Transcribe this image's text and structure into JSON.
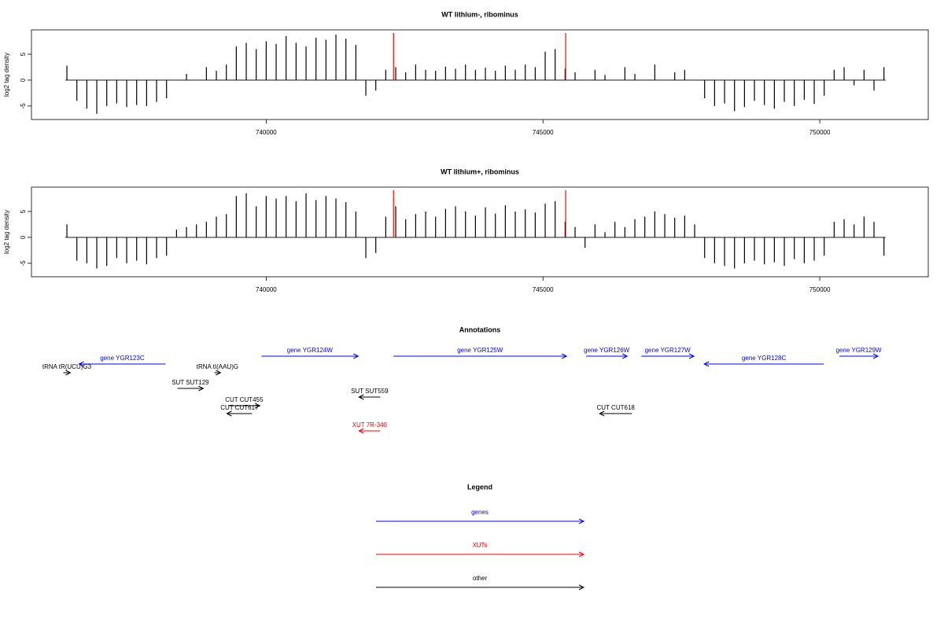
{
  "chart_data": [
    {
      "type": "bar",
      "title": "WT lithium-, ribominus",
      "ylabel": "log2 tag density",
      "color": "#000000",
      "x": [
        736400,
        736580,
        736760,
        736940,
        737120,
        737300,
        737480,
        737660,
        737840,
        738020,
        738200,
        738380,
        738560,
        738740,
        738920,
        739100,
        739280,
        739460,
        739640,
        739820,
        740000,
        740180,
        740360,
        740540,
        740720,
        740900,
        741080,
        741260,
        741440,
        741620,
        741800,
        741980,
        742160,
        742340,
        742520,
        742700,
        742880,
        743060,
        743240,
        743420,
        743600,
        743780,
        743960,
        744140,
        744320,
        744500,
        744680,
        744860,
        745040,
        745220,
        745400,
        745580,
        745760,
        745940,
        746120,
        746300,
        746480,
        746660,
        746840,
        747020,
        747200,
        747380,
        747560,
        747740,
        747920,
        748100,
        748280,
        748460,
        748640,
        748820,
        749000,
        749180,
        749360,
        749540,
        749720,
        749900,
        750080,
        750260,
        750440,
        750620,
        750800,
        750980,
        751160
      ],
      "values": [
        2.8,
        -4,
        -5.5,
        -6.5,
        -5,
        -4.5,
        -5.2,
        -4.8,
        -5,
        -4.2,
        -3.5,
        0,
        1.2,
        0,
        2.5,
        1.8,
        3,
        6.5,
        7.2,
        6,
        7.5,
        7,
        8.5,
        7.2,
        6.5,
        8.2,
        7.8,
        8.8,
        8,
        6.8,
        -3,
        -2,
        2,
        2.5,
        1.5,
        3,
        2,
        1.8,
        2.6,
        2.2,
        3,
        2,
        2.4,
        1.8,
        2.8,
        2,
        3,
        2.5,
        5.5,
        6,
        2.2,
        1.5,
        0,
        2,
        1,
        0,
        2.5,
        1.2,
        0,
        3,
        0,
        1.5,
        2,
        0,
        -3.5,
        -5,
        -4.5,
        -6,
        -5.2,
        -4,
        -4.8,
        -5.5,
        -4.2,
        -5,
        -3.8,
        -4.6,
        -3,
        2,
        2.5,
        -1,
        2,
        -2,
        2.5
      ],
      "vlines": [
        742300,
        745410
      ],
      "vline_color": "#ff0000",
      "xlim": [
        735760,
        751960
      ],
      "xticks": [
        740000,
        745000,
        750000
      ],
      "ylim": [
        -7.6,
        9.7
      ],
      "yticks": [
        -5,
        0,
        5
      ]
    },
    {
      "type": "bar",
      "title": "WT lithium+, ribominus",
      "ylabel": "log2 tag density",
      "color": "#000000",
      "x": [
        736400,
        736580,
        736760,
        736940,
        737120,
        737300,
        737480,
        737660,
        737840,
        738020,
        738200,
        738380,
        738560,
        738740,
        738920,
        739100,
        739280,
        739460,
        739640,
        739820,
        740000,
        740180,
        740360,
        740540,
        740720,
        740900,
        741080,
        741260,
        741440,
        741620,
        741800,
        741980,
        742160,
        742340,
        742520,
        742700,
        742880,
        743060,
        743240,
        743420,
        743600,
        743780,
        743960,
        744140,
        744320,
        744500,
        744680,
        744860,
        745040,
        745220,
        745400,
        745580,
        745760,
        745940,
        746120,
        746300,
        746480,
        746660,
        746840,
        747020,
        747200,
        747380,
        747560,
        747740,
        747920,
        748100,
        748280,
        748460,
        748640,
        748820,
        749000,
        749180,
        749360,
        749540,
        749720,
        749900,
        750080,
        750260,
        750440,
        750620,
        750800,
        750980,
        751160
      ],
      "values": [
        2.5,
        -4.5,
        -5,
        -6,
        -5.5,
        -4,
        -5,
        -4.5,
        -5.2,
        -4,
        -3.5,
        1.5,
        2,
        2.5,
        3,
        4,
        4.5,
        8,
        8.5,
        6,
        8,
        7.5,
        8,
        7,
        8.5,
        7.2,
        8,
        7.5,
        6.8,
        5,
        -4,
        -3,
        4,
        6,
        3.5,
        4.5,
        5,
        4,
        5.5,
        6,
        5,
        4.2,
        5.8,
        4.6,
        6.2,
        5,
        5.4,
        4.8,
        6.5,
        7,
        3,
        2,
        -2,
        2.5,
        1,
        3,
        2,
        3.5,
        4,
        5,
        4.5,
        3.8,
        4.2,
        2.5,
        -4,
        -5,
        -5.5,
        -6,
        -5,
        -4.5,
        -5.2,
        -4.8,
        -5.5,
        -4.2,
        -5,
        -4.5,
        -3.5,
        3,
        3.5,
        2.5,
        4,
        3,
        -3.5
      ],
      "vlines": [
        742300,
        745410
      ],
      "vline_color": "#ff0000",
      "xlim": [
        735760,
        751960
      ],
      "xticks": [
        740000,
        745000,
        750000
      ],
      "ylim": [
        -7.6,
        9.7
      ],
      "yticks": [
        -5,
        0,
        5
      ]
    }
  ],
  "annotations": {
    "title": "Annotations",
    "features": [
      {
        "label": "gene YGR123C",
        "start": 738182,
        "end": 736619,
        "color": "#0000ff"
      },
      {
        "label": "tRNA tR(UCU)G3",
        "start": 736335,
        "end": 736463,
        "color": "#000000"
      },
      {
        "label": "tRNA tI(AAU)G",
        "start": 739063,
        "end": 739176,
        "color": "#000000"
      },
      {
        "label": "gene YGR124W",
        "start": 739915,
        "end": 741662,
        "color": "#0000ff"
      },
      {
        "label": "SUT SUT129",
        "start": 738395,
        "end": 738864,
        "color": "#000000"
      },
      {
        "label": "CUT CUT455",
        "start": 739318,
        "end": 739886,
        "color": "#000000"
      },
      {
        "label": "CUT CUT617",
        "start": 739744,
        "end": 739290,
        "color": "#000000"
      },
      {
        "label": "SUT SUT559",
        "start": 742060,
        "end": 741676,
        "color": "#000000"
      },
      {
        "label": "XUT 7R-340",
        "start": 742060,
        "end": 741676,
        "color": "#ff0000"
      },
      {
        "label": "gene YGR125W",
        "start": 742301,
        "end": 745426,
        "color": "#0000ff"
      },
      {
        "label": "gene YGR126W",
        "start": 745781,
        "end": 746520,
        "color": "#0000ff"
      },
      {
        "label": "gene YGR127W",
        "start": 746776,
        "end": 747727,
        "color": "#0000ff"
      },
      {
        "label": "gene YGR128C",
        "start": 750071,
        "end": 747912,
        "color": "#0000ff"
      },
      {
        "label": "gene YGR129W",
        "start": 750355,
        "end": 751051,
        "color": "#0000ff"
      },
      {
        "label": "CUT CUT618",
        "start": 746605,
        "end": 746023,
        "color": "#000000"
      }
    ]
  },
  "legend": {
    "title": "Legend",
    "items": [
      {
        "label": "genes",
        "color": "#0000ff"
      },
      {
        "label": "XUTs",
        "color": "#ff0000"
      },
      {
        "label": "other",
        "color": "#000000"
      }
    ]
  }
}
